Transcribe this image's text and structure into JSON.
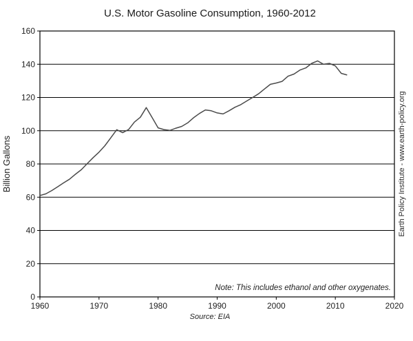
{
  "chart_data": {
    "type": "line",
    "title": "U.S. Motor Gasoline Consumption, 1960-2012",
    "xlabel": "",
    "ylabel": "Billion Gallons",
    "xlim": [
      1960,
      2020
    ],
    "ylim": [
      0,
      160
    ],
    "x_tick_step": 10,
    "y_tick_step": 20,
    "grid": "horizontal",
    "legend": "none",
    "note": "Note: This includes ethanol and other oxygenates.",
    "source": "Source: EIA",
    "watermark": "Earth Policy Institute - www.earth-policy.org",
    "line_color": "#4a4a4a",
    "x": [
      1960,
      1961,
      1962,
      1963,
      1964,
      1965,
      1966,
      1967,
      1968,
      1969,
      1970,
      1971,
      1972,
      1973,
      1974,
      1975,
      1976,
      1977,
      1978,
      1979,
      1980,
      1981,
      1982,
      1983,
      1984,
      1985,
      1986,
      1987,
      1988,
      1989,
      1990,
      1991,
      1992,
      1993,
      1994,
      1995,
      1996,
      1997,
      1998,
      1999,
      2000,
      2001,
      2002,
      2003,
      2004,
      2005,
      2006,
      2007,
      2008,
      2009,
      2010,
      2011,
      2012
    ],
    "values": [
      61.0,
      62.0,
      64.0,
      66.3,
      68.6,
      70.8,
      73.8,
      76.5,
      80.2,
      83.8,
      87.1,
      91.0,
      95.8,
      100.6,
      98.8,
      100.7,
      105.2,
      108.1,
      113.9,
      107.9,
      101.7,
      100.7,
      100.2,
      101.5,
      102.6,
      104.7,
      107.8,
      110.4,
      112.5,
      112.0,
      110.7,
      110.1,
      112.0,
      114.1,
      115.7,
      117.9,
      120.0,
      122.2,
      125.1,
      127.9,
      128.7,
      129.7,
      132.8,
      134.1,
      136.5,
      137.8,
      140.5,
      142.0,
      140.0,
      140.5,
      139.0,
      134.5,
      133.5
    ]
  }
}
